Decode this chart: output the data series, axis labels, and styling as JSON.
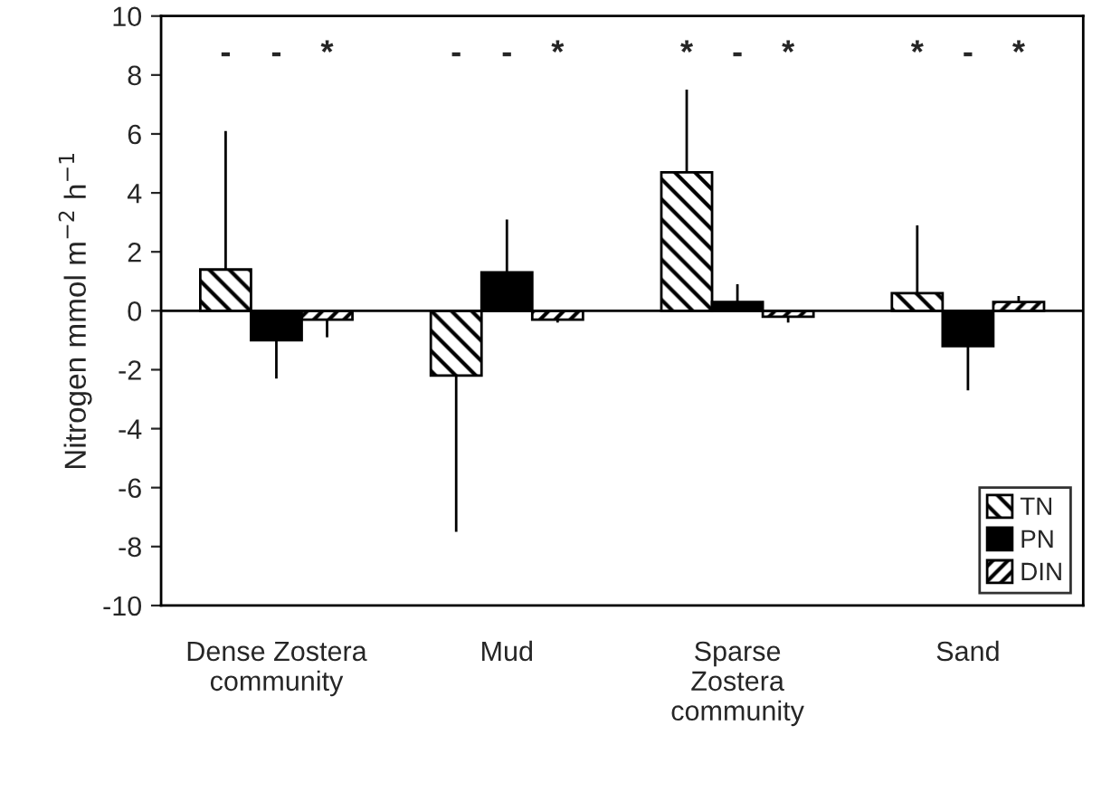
{
  "chart_data": {
    "type": "bar",
    "ylabel": "Nitrogen mmol m$^{−2}$ h$^{−1}$",
    "categories": [
      "Dense Zostera\ncommunity",
      "Mud",
      "Sparse\nZostera\ncommunity",
      "Sand"
    ],
    "series": [
      {
        "name": "TN",
        "color": "#000000",
        "values": [
          1.4,
          -2.2,
          4.7,
          0.6
        ],
        "errors": [
          [
            1.4,
            6.1
          ],
          [
            -7.5,
            -2.2
          ],
          [
            4.7,
            7.5
          ],
          [
            0.6,
            2.9
          ]
        ]
      },
      {
        "name": "PN",
        "color": "#000000",
        "values": [
          -1.0,
          1.3,
          0.3,
          -1.2
        ],
        "errors": [
          [
            -2.3,
            -1.0
          ],
          [
            1.3,
            3.1
          ],
          [
            0.3,
            0.9
          ],
          [
            -2.7,
            -1.2
          ]
        ]
      },
      {
        "name": "DIN",
        "color": "#000000",
        "values": [
          -0.3,
          -0.3,
          -0.2,
          0.3
        ],
        "errors": [
          [
            -0.9,
            -0.3
          ],
          [
            -0.4,
            -0.3
          ],
          [
            -0.4,
            -0.2
          ],
          [
            0.3,
            0.5
          ]
        ]
      }
    ],
    "ylim": [
      -10,
      10
    ],
    "yticks": [
      -10,
      -8,
      -6,
      -4,
      -2,
      0,
      2,
      4,
      6,
      8,
      10
    ],
    "ref_lines": [
      {
        "axis": "y",
        "value": 0
      }
    ],
    "annotations": [
      "-",
      "-",
      "*",
      "-",
      "-",
      "*",
      "*",
      "-",
      "*",
      "*",
      "-",
      "*"
    ],
    "legend": "bottom right",
    "grid": false
  }
}
